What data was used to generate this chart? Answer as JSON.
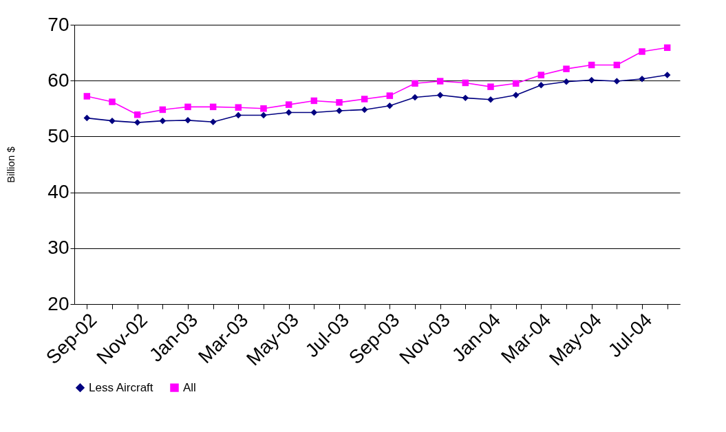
{
  "chart_data": {
    "type": "line",
    "ylabel": "Billion $",
    "categories": [
      "Sep-02",
      null,
      "Nov-02",
      null,
      "Jan-03",
      null,
      "Mar-03",
      null,
      "May-03",
      null,
      "Jul-03",
      null,
      "Sep-03",
      null,
      "Nov-03",
      null,
      "Jan-04",
      null,
      "Mar-04",
      null,
      "May-04",
      null,
      "Jul-04",
      null
    ],
    "series": [
      {
        "name": "Less Aircraft",
        "color": "#000080",
        "marker": "diamond",
        "values": [
          53.3,
          52.8,
          52.5,
          52.8,
          52.9,
          52.6,
          53.8,
          53.8,
          54.3,
          54.3,
          54.6,
          54.8,
          55.5,
          57.0,
          57.4,
          56.9,
          56.6,
          57.4,
          59.2,
          59.8,
          60.1,
          59.9,
          60.3,
          61.0
        ]
      },
      {
        "name": "All",
        "color": "#ff00ff",
        "marker": "square",
        "values": [
          57.2,
          56.2,
          53.9,
          54.8,
          55.3,
          55.3,
          55.2,
          55.0,
          55.7,
          56.4,
          56.1,
          56.7,
          57.3,
          59.5,
          59.9,
          59.6,
          58.9,
          59.5,
          61.0,
          62.1,
          62.8,
          62.8,
          65.2,
          65.9
        ]
      }
    ],
    "ylim": [
      20,
      70
    ],
    "yticks": [
      20,
      30,
      40,
      50,
      60,
      70
    ],
    "grid": "y",
    "legend": "bottom"
  }
}
